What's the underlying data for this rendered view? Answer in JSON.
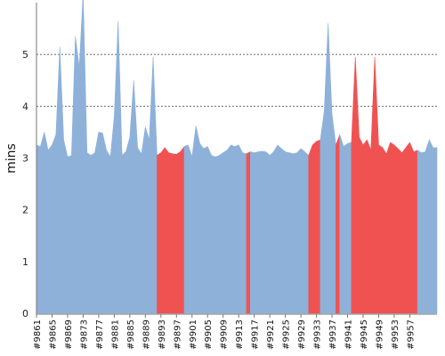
{
  "chart_data": {
    "type": "area",
    "ylabel": "mins",
    "ylim": [
      0,
      6
    ],
    "yticks": [
      0,
      1,
      2,
      3,
      4,
      5
    ],
    "grid": true,
    "colors": {
      "normal": "#8eb1da",
      "highlight": "#f05252"
    },
    "xtick_labels": [
      "#9861",
      "#9865",
      "#9869",
      "#9873",
      "#9877",
      "#9881",
      "#9885",
      "#9889",
      "#9893",
      "#9897",
      "#9901",
      "#9905",
      "#9909",
      "#9913",
      "#9917",
      "#9921",
      "#9925",
      "#9929",
      "#9933",
      "#9937",
      "#9941",
      "#9945",
      "#9949",
      "#9953",
      "#9957"
    ],
    "x_start": 9861,
    "values": [
      3.25,
      3.22,
      3.5,
      3.15,
      3.25,
      3.45,
      5.15,
      3.35,
      3.02,
      3.05,
      5.35,
      4.75,
      6.2,
      3.1,
      3.05,
      3.1,
      3.5,
      3.48,
      3.15,
      3.02,
      3.8,
      5.65,
      3.05,
      3.12,
      3.4,
      4.5,
      3.2,
      3.08,
      3.6,
      3.35,
      4.95,
      3.05,
      3.1,
      3.2,
      3.1,
      3.08,
      3.07,
      3.12,
      3.22,
      3.25,
      3.02,
      3.62,
      3.28,
      3.18,
      3.22,
      3.05,
      3.02,
      3.05,
      3.1,
      3.15,
      3.25,
      3.22,
      3.25,
      3.1,
      3.08,
      3.12,
      3.1,
      3.12,
      3.13,
      3.12,
      3.05,
      3.12,
      3.25,
      3.18,
      3.12,
      3.1,
      3.08,
      3.1,
      3.18,
      3.12,
      3.05,
      3.25,
      3.32,
      3.35,
      3.9,
      5.6,
      3.85,
      3.25,
      3.45,
      3.22,
      3.28,
      3.3,
      4.95,
      3.4,
      3.25,
      3.35,
      3.15,
      4.95,
      3.25,
      3.2,
      3.08,
      3.3,
      3.25,
      3.18,
      3.1,
      3.2,
      3.3,
      3.12,
      3.15,
      3.1,
      3.12,
      3.35,
      3.2,
      3.2
    ],
    "highlight": [
      0,
      0,
      0,
      0,
      0,
      0,
      0,
      0,
      0,
      0,
      0,
      0,
      0,
      0,
      0,
      0,
      0,
      0,
      0,
      0,
      0,
      0,
      0,
      0,
      0,
      0,
      0,
      0,
      0,
      0,
      0,
      1,
      1,
      1,
      1,
      1,
      1,
      1,
      0,
      0,
      0,
      0,
      0,
      0,
      0,
      0,
      0,
      0,
      0,
      0,
      0,
      0,
      0,
      0,
      1,
      0,
      0,
      0,
      0,
      0,
      0,
      0,
      0,
      0,
      0,
      0,
      0,
      0,
      0,
      0,
      1,
      1,
      1,
      0,
      0,
      0,
      0,
      1,
      0,
      0,
      0,
      1,
      1,
      1,
      1,
      1,
      1,
      1,
      1,
      1,
      1,
      1,
      1,
      1,
      1,
      1,
      1,
      1,
      0,
      0,
      0,
      0,
      0,
      0
    ]
  }
}
